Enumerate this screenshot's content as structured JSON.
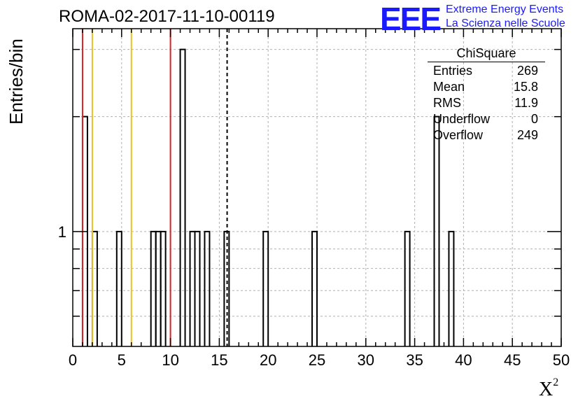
{
  "header": {
    "title": "ROMA-02-2017-11-10-00119",
    "logo": "EEE",
    "logo_line1": "Extreme Energy Events",
    "logo_line2": "La Scienza nelle Scuole"
  },
  "stats_box": {
    "title": "ChiSquare",
    "rows": [
      {
        "label": "Entries",
        "value": "269"
      },
      {
        "label": "Mean",
        "value": "15.8"
      },
      {
        "label": "RMS",
        "value": "11.9"
      },
      {
        "label": "Underflow",
        "value": "0"
      },
      {
        "label": "Overflow",
        "value": "249"
      }
    ]
  },
  "colors": {
    "red_line": "#dd2222",
    "yellow_line": "#f0c020",
    "histogram": "#000000",
    "grid": "#b0b0b0"
  },
  "chart_data": {
    "type": "bar",
    "title": "ROMA-02-2017-11-10-00119",
    "xlabel": "X",
    "xlabel_sup": "2",
    "ylabel": "Entries/bin",
    "xlim": [
      0,
      50
    ],
    "ylim_log": [
      0.5,
      3.4
    ],
    "y_scale": "log",
    "grid": true,
    "bin_width": 0.5,
    "bins": [
      {
        "x": 1.0,
        "count": 2
      },
      {
        "x": 2.0,
        "count": 1
      },
      {
        "x": 4.5,
        "count": 1
      },
      {
        "x": 8.0,
        "count": 1
      },
      {
        "x": 8.5,
        "count": 1
      },
      {
        "x": 9.0,
        "count": 1
      },
      {
        "x": 11.0,
        "count": 3
      },
      {
        "x": 12.0,
        "count": 1
      },
      {
        "x": 12.5,
        "count": 1
      },
      {
        "x": 13.5,
        "count": 1
      },
      {
        "x": 15.5,
        "count": 1
      },
      {
        "x": 19.5,
        "count": 1
      },
      {
        "x": 24.5,
        "count": 1
      },
      {
        "x": 34.0,
        "count": 1
      },
      {
        "x": 37.0,
        "count": 2
      },
      {
        "x": 38.5,
        "count": 1
      }
    ],
    "x_ticks": [
      "0",
      "5",
      "10",
      "15",
      "20",
      "25",
      "30",
      "35",
      "40",
      "45",
      "50"
    ],
    "y_tick_label": "1",
    "vertical_lines": [
      {
        "x": 1.0,
        "color": "red"
      },
      {
        "x": 2.0,
        "color": "yellow"
      },
      {
        "x": 6.0,
        "color": "yellow"
      },
      {
        "x": 10.0,
        "color": "red"
      },
      {
        "x": 15.8,
        "color": "black-dashed"
      }
    ]
  }
}
